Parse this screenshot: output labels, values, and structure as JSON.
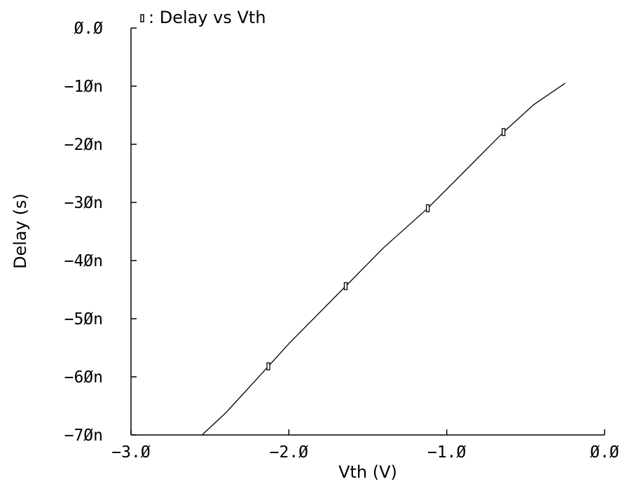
{
  "chart_data": {
    "type": "line",
    "title": "",
    "legend": {
      "marker": "rectangle",
      "label": "Delay vs Vth",
      "placement": "top-left"
    },
    "xlabel": "Vth (V)",
    "ylabel": "Delay (s)",
    "xlim": [
      -3.0,
      0.0
    ],
    "ylim": [
      -7e-08,
      0
    ],
    "x_ticks": [
      {
        "value": -3.0,
        "label": "−3.Ø"
      },
      {
        "value": -2.0,
        "label": "−2.Ø"
      },
      {
        "value": -1.0,
        "label": "−1.Ø"
      },
      {
        "value": 0.0,
        "label": "Ø.Ø"
      }
    ],
    "y_ticks": [
      {
        "value": 0,
        "label": "Ø.Ø"
      },
      {
        "value": -1e-08,
        "label": "−1Øn"
      },
      {
        "value": -2e-08,
        "label": "−2Øn"
      },
      {
        "value": -3e-08,
        "label": "−3Øn"
      },
      {
        "value": -4e-08,
        "label": "−4Øn"
      },
      {
        "value": -5e-08,
        "label": "−5Øn"
      },
      {
        "value": -6e-08,
        "label": "−6Øn"
      },
      {
        "value": -7e-08,
        "label": "−7Øn"
      }
    ],
    "grid": false,
    "series": [
      {
        "name": "Delay vs Vth",
        "color": "#000000",
        "x": [
          -2.55,
          -2.4,
          -2.13,
          -2.0,
          -1.64,
          -1.4,
          -1.12,
          -0.9,
          -0.64,
          -0.45,
          -0.25
        ],
        "y": [
          -7e-08,
          -6.62e-08,
          -5.82e-08,
          -5.43e-08,
          -4.44e-08,
          -3.78e-08,
          -3.1e-08,
          -2.5e-08,
          -1.79e-08,
          -1.32e-08,
          -9.5e-09
        ],
        "markers": [
          {
            "x": -2.13,
            "y": -5.82e-08
          },
          {
            "x": -1.64,
            "y": -4.44e-08
          },
          {
            "x": -1.12,
            "y": -3.1e-08
          },
          {
            "x": -0.64,
            "y": -1.79e-08
          }
        ]
      }
    ]
  }
}
